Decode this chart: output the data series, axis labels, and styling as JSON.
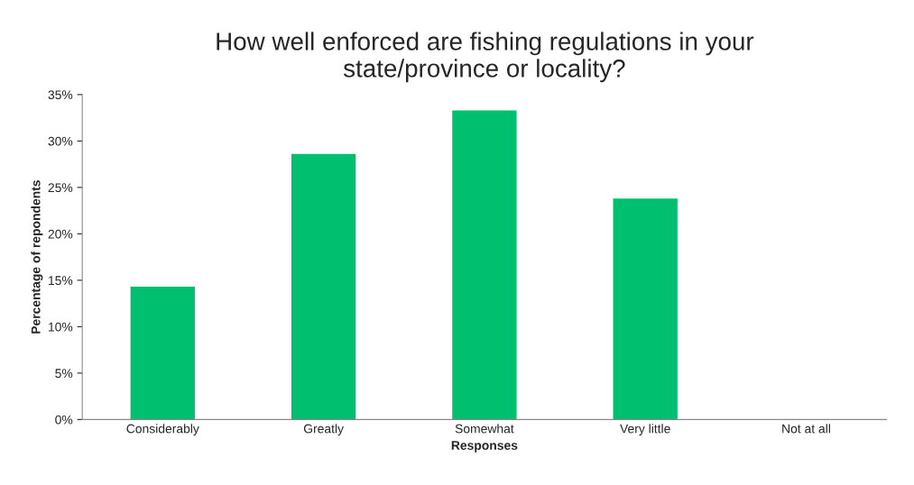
{
  "chart_data": {
    "type": "bar",
    "title": "How well enforced are fishing regulations in your\nstate/province or locality?",
    "xlabel": "Responses",
    "ylabel": "Percentage of repondents",
    "categories": [
      "Considerably",
      "Greatly",
      "Somewhat",
      "Very little",
      "Not at all"
    ],
    "values": [
      14.3,
      28.6,
      33.3,
      23.8,
      0
    ],
    "color": "#00c070",
    "ylim": [
      0,
      35
    ],
    "yticks": [
      {
        "value": 0,
        "label": "0%"
      },
      {
        "value": 5,
        "label": "5%"
      },
      {
        "value": 10,
        "label": "10%"
      },
      {
        "value": 15,
        "label": "15%"
      },
      {
        "value": 20,
        "label": "20%"
      },
      {
        "value": 25,
        "label": "25%"
      },
      {
        "value": 30,
        "label": "30%"
      },
      {
        "value": 35,
        "label": "35%"
      }
    ],
    "grid": false,
    "legend": false
  }
}
